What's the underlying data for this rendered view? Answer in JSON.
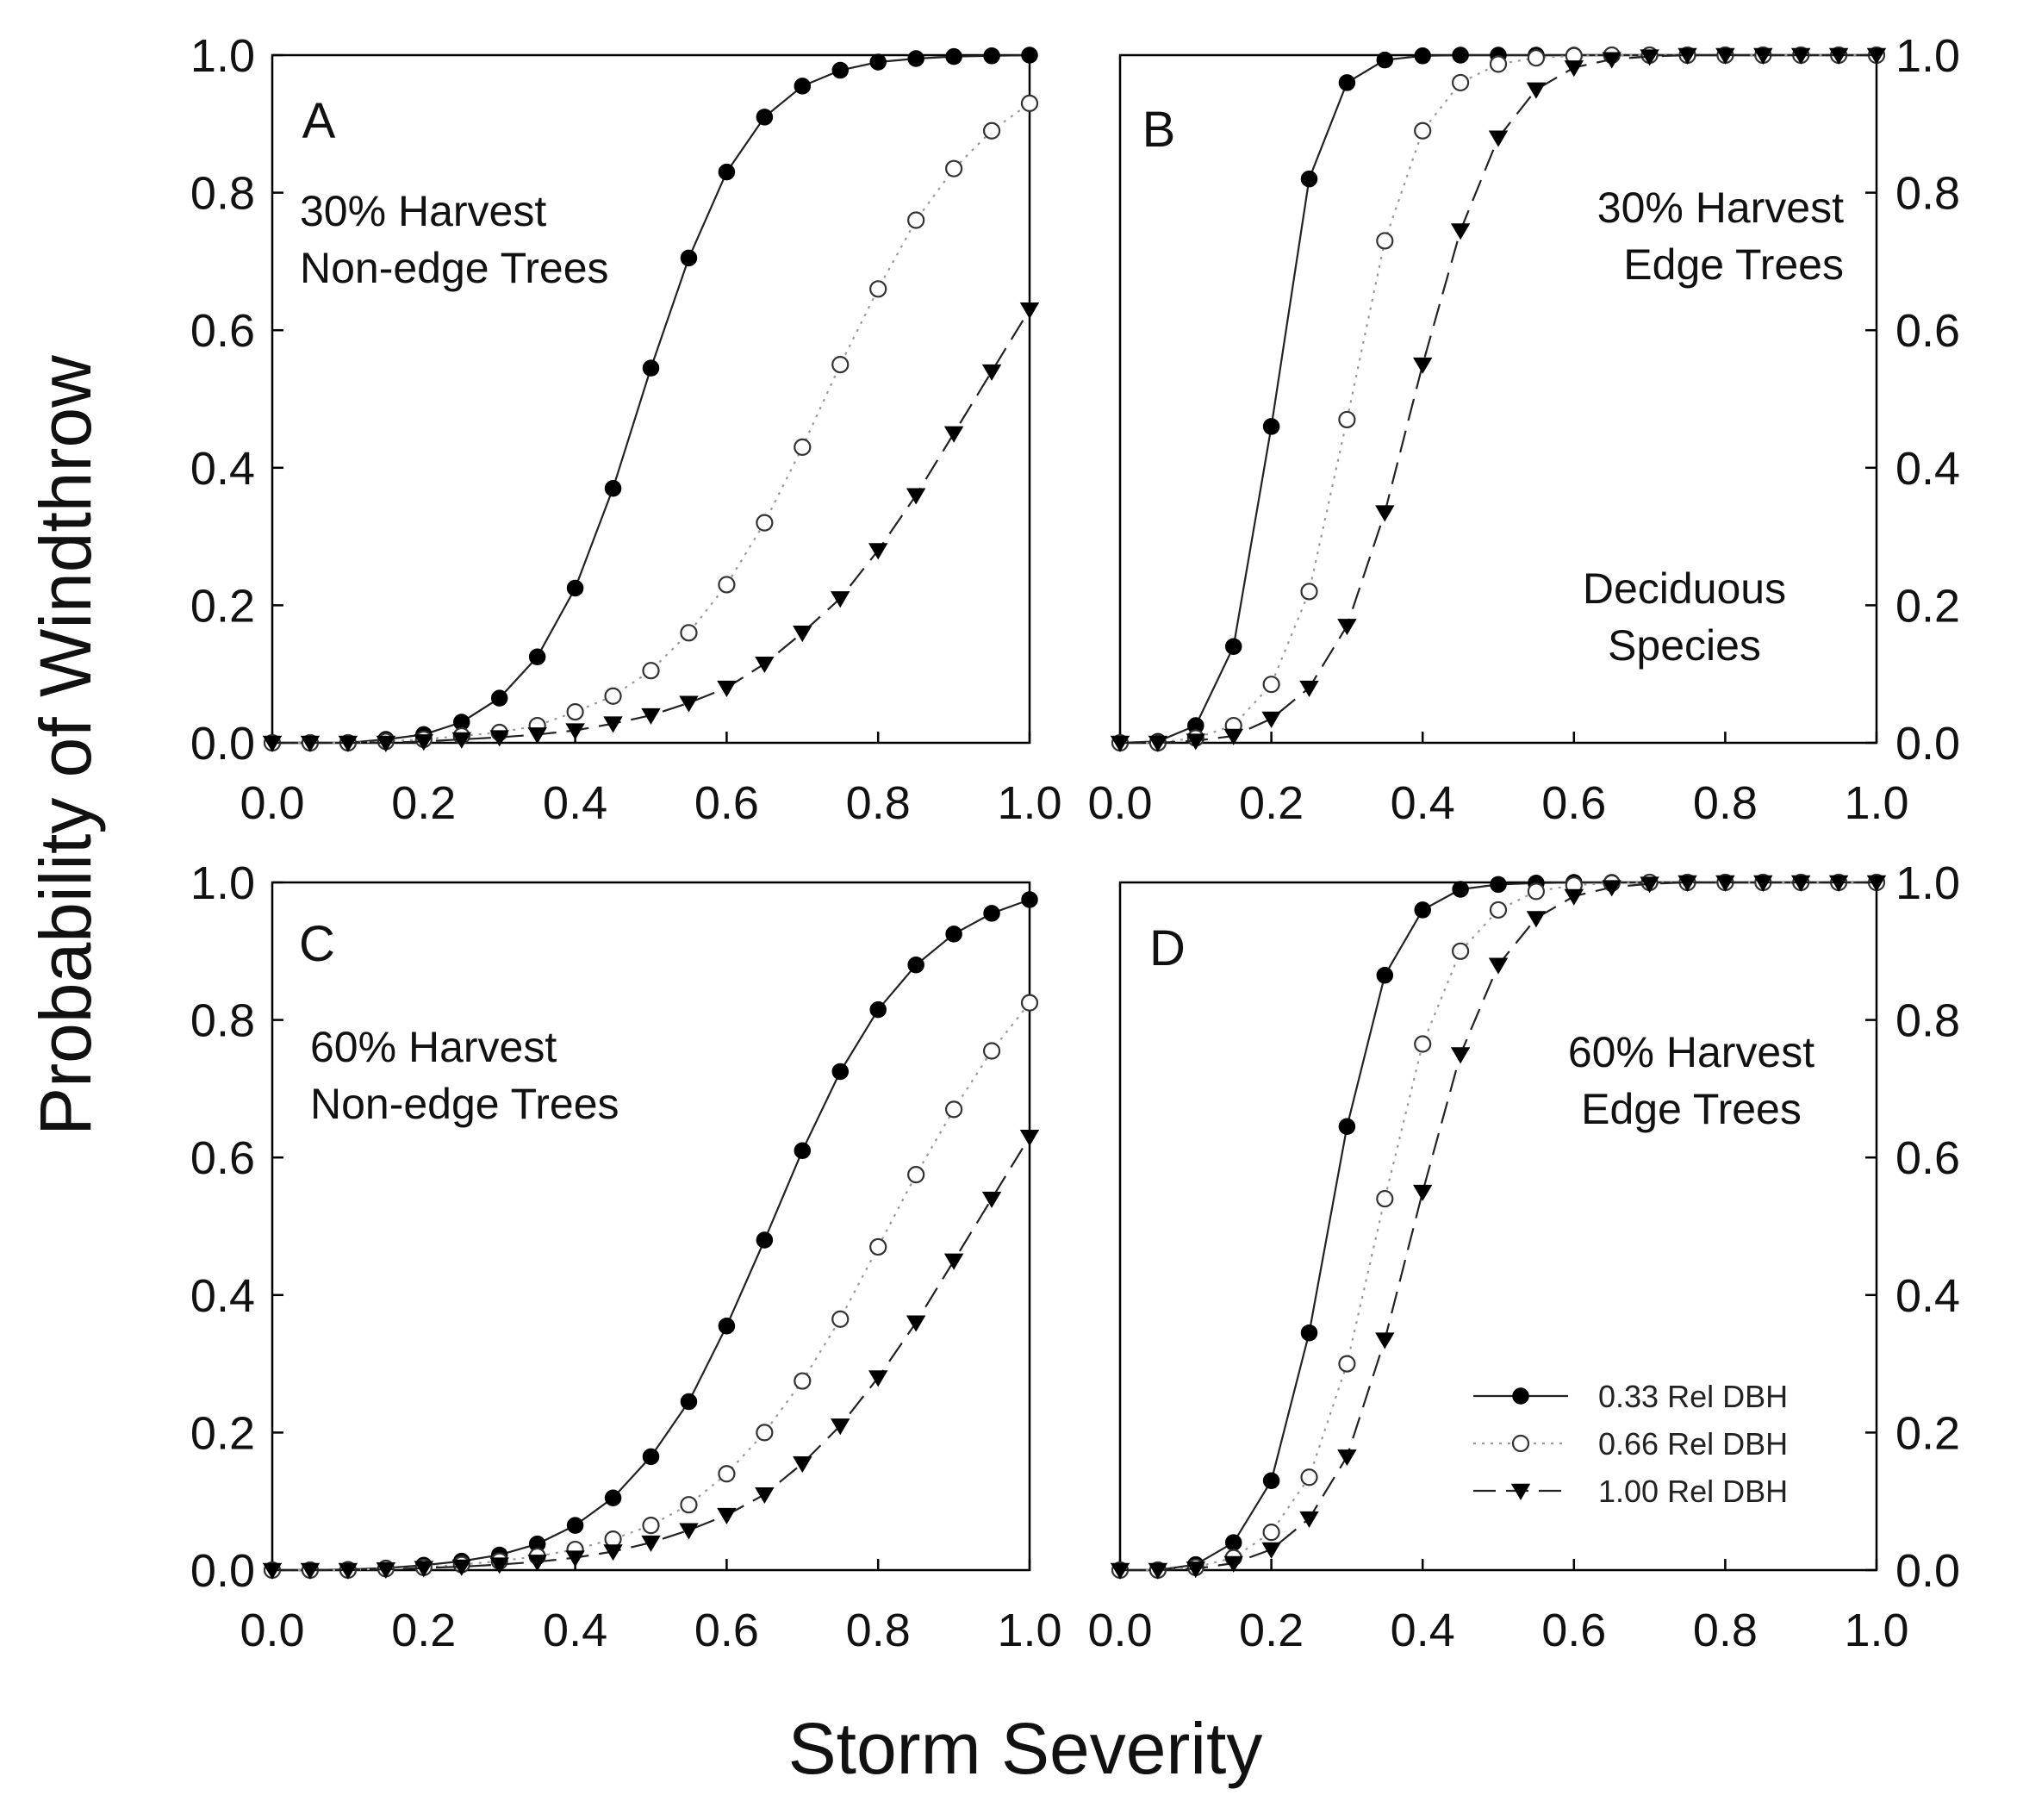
{
  "figure": {
    "ylabel": "Probability of Windthrow",
    "xlabel": "Storm Severity",
    "x_ticks": [
      "0.0",
      "0.2",
      "0.4",
      "0.6",
      "0.8",
      "1.0"
    ],
    "y_ticks": [
      "0.0",
      "0.2",
      "0.4",
      "0.6",
      "0.8",
      "1.0"
    ],
    "legend": [
      {
        "label": "0.33 Rel DBH",
        "marker": "filled-circle",
        "line": "solid"
      },
      {
        "label": "0.66 Rel DBH",
        "marker": "open-circle",
        "line": "dotted"
      },
      {
        "label": "1.00 Rel DBH",
        "marker": "filled-triangle-down",
        "line": "dashed"
      }
    ]
  },
  "chart_data": [
    {
      "type": "line",
      "panel": "A",
      "annotations": [
        "30% Harvest",
        "Non-edge Trees"
      ],
      "xlabel": "Storm Severity",
      "ylabel": "Probability of Windthrow",
      "xlim": [
        0,
        1
      ],
      "ylim": [
        0,
        1
      ],
      "x": [
        0.0,
        0.05,
        0.1,
        0.15,
        0.2,
        0.25,
        0.3,
        0.35,
        0.4,
        0.45,
        0.5,
        0.55,
        0.6,
        0.65,
        0.7,
        0.75,
        0.8,
        0.85,
        0.9,
        0.95,
        1.0
      ],
      "series": [
        {
          "name": "0.33 Rel DBH",
          "values": [
            0.0,
            0.0,
            0.0,
            0.005,
            0.012,
            0.03,
            0.065,
            0.125,
            0.225,
            0.37,
            0.545,
            0.705,
            0.83,
            0.91,
            0.955,
            0.978,
            0.99,
            0.995,
            0.998,
            0.999,
            1.0
          ]
        },
        {
          "name": "0.66 Rel DBH",
          "values": [
            0.0,
            0.0,
            0.0,
            0.002,
            0.005,
            0.01,
            0.015,
            0.025,
            0.045,
            0.068,
            0.105,
            0.16,
            0.23,
            0.32,
            0.43,
            0.55,
            0.66,
            0.76,
            0.835,
            0.89,
            0.93
          ]
        },
        {
          "name": "1.00 Rel DBH",
          "values": [
            0.0,
            0.0,
            0.0,
            0.0,
            0.002,
            0.005,
            0.008,
            0.012,
            0.018,
            0.028,
            0.04,
            0.058,
            0.08,
            0.115,
            0.16,
            0.21,
            0.28,
            0.36,
            0.45,
            0.54,
            0.63
          ]
        }
      ]
    },
    {
      "type": "line",
      "panel": "B",
      "annotations": [
        "30% Harvest",
        "Edge Trees",
        "Deciduous",
        "Species"
      ],
      "xlabel": "Storm Severity",
      "ylabel": "Probability of Windthrow",
      "xlim": [
        0,
        1
      ],
      "ylim": [
        0,
        1
      ],
      "x": [
        0.0,
        0.05,
        0.1,
        0.15,
        0.2,
        0.25,
        0.3,
        0.35,
        0.4,
        0.45,
        0.5,
        0.55,
        0.6,
        0.65,
        0.7,
        0.75,
        0.8,
        0.85,
        0.9,
        0.95,
        1.0
      ],
      "series": [
        {
          "name": "0.33 Rel DBH",
          "values": [
            0.0,
            0.002,
            0.025,
            0.14,
            0.46,
            0.82,
            0.96,
            0.993,
            0.999,
            1.0,
            1.0,
            1.0,
            1.0,
            1.0,
            1.0,
            1.0,
            1.0,
            1.0,
            1.0,
            1.0,
            1.0
          ]
        },
        {
          "name": "0.66 Rel DBH",
          "values": [
            0.0,
            0.0,
            0.007,
            0.025,
            0.085,
            0.22,
            0.47,
            0.73,
            0.89,
            0.96,
            0.987,
            0.996,
            0.999,
            1.0,
            1.0,
            1.0,
            1.0,
            1.0,
            1.0,
            1.0,
            1.0
          ]
        },
        {
          "name": "1.00 Rel DBH",
          "values": [
            0.0,
            0.0,
            0.003,
            0.01,
            0.035,
            0.08,
            0.17,
            0.335,
            0.55,
            0.745,
            0.88,
            0.95,
            0.982,
            0.994,
            0.998,
            1.0,
            1.0,
            1.0,
            1.0,
            1.0,
            1.0
          ]
        }
      ]
    },
    {
      "type": "line",
      "panel": "C",
      "annotations": [
        "60% Harvest",
        "Non-edge Trees"
      ],
      "xlabel": "Storm Severity",
      "ylabel": "Probability of Windthrow",
      "xlim": [
        0,
        1
      ],
      "ylim": [
        0,
        1
      ],
      "x": [
        0.0,
        0.05,
        0.1,
        0.15,
        0.2,
        0.25,
        0.3,
        0.35,
        0.4,
        0.45,
        0.5,
        0.55,
        0.6,
        0.65,
        0.7,
        0.75,
        0.8,
        0.85,
        0.9,
        0.95,
        1.0
      ],
      "series": [
        {
          "name": "0.33 Rel DBH",
          "values": [
            0.0,
            0.0,
            0.001,
            0.003,
            0.007,
            0.013,
            0.022,
            0.038,
            0.065,
            0.105,
            0.165,
            0.245,
            0.355,
            0.48,
            0.61,
            0.725,
            0.815,
            0.88,
            0.925,
            0.955,
            0.975
          ]
        },
        {
          "name": "0.66 Rel DBH",
          "values": [
            0.0,
            0.0,
            0.0,
            0.002,
            0.004,
            0.008,
            0.013,
            0.02,
            0.03,
            0.045,
            0.065,
            0.095,
            0.14,
            0.2,
            0.275,
            0.365,
            0.47,
            0.575,
            0.67,
            0.755,
            0.825
          ]
        },
        {
          "name": "1.00 Rel DBH",
          "values": [
            0.0,
            0.0,
            0.0,
            0.001,
            0.003,
            0.005,
            0.008,
            0.012,
            0.018,
            0.027,
            0.04,
            0.058,
            0.08,
            0.11,
            0.155,
            0.21,
            0.28,
            0.36,
            0.45,
            0.54,
            0.63
          ]
        }
      ]
    },
    {
      "type": "line",
      "panel": "D",
      "annotations": [
        "60% Harvest",
        "Edge Trees"
      ],
      "xlabel": "Storm Severity",
      "ylabel": "Probability of Windthrow",
      "xlim": [
        0,
        1
      ],
      "ylim": [
        0,
        1
      ],
      "x": [
        0.0,
        0.05,
        0.1,
        0.15,
        0.2,
        0.25,
        0.3,
        0.35,
        0.4,
        0.45,
        0.5,
        0.55,
        0.6,
        0.65,
        0.7,
        0.75,
        0.8,
        0.85,
        0.9,
        0.95,
        1.0
      ],
      "series": [
        {
          "name": "0.33 Rel DBH",
          "values": [
            0.0,
            0.0,
            0.008,
            0.04,
            0.13,
            0.345,
            0.645,
            0.865,
            0.96,
            0.99,
            0.997,
            0.999,
            1.0,
            1.0,
            1.0,
            1.0,
            1.0,
            1.0,
            1.0,
            1.0,
            1.0
          ]
        },
        {
          "name": "0.66 Rel DBH",
          "values": [
            0.0,
            0.0,
            0.004,
            0.018,
            0.055,
            0.135,
            0.3,
            0.54,
            0.765,
            0.9,
            0.96,
            0.987,
            0.996,
            0.999,
            1.0,
            1.0,
            1.0,
            1.0,
            1.0,
            1.0,
            1.0
          ]
        },
        {
          "name": "1.00 Rel DBH",
          "values": [
            0.0,
            0.0,
            0.002,
            0.01,
            0.03,
            0.075,
            0.165,
            0.335,
            0.55,
            0.75,
            0.88,
            0.948,
            0.98,
            0.993,
            0.998,
            1.0,
            1.0,
            1.0,
            1.0,
            1.0,
            1.0
          ]
        }
      ]
    }
  ]
}
